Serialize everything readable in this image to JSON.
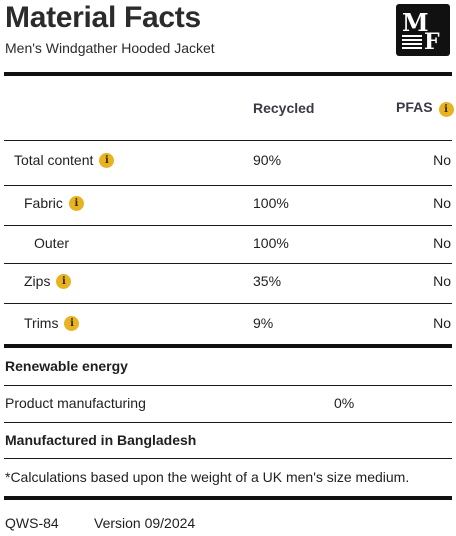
{
  "header": {
    "title": "Material Facts",
    "subtitle": "Men's Windgather Hooded Jacket",
    "logo_text": "MF"
  },
  "columns": {
    "recycled": "Recycled",
    "pfas": "PFAS"
  },
  "rows": [
    {
      "label": "Total content",
      "recycled": "90%",
      "pfas": "No",
      "info": true
    },
    {
      "label": "Fabric",
      "recycled": "100%",
      "pfas": "No",
      "info": true
    },
    {
      "label": "Outer",
      "recycled": "100%",
      "pfas": "No",
      "info": false
    },
    {
      "label": "Zips",
      "recycled": "35%",
      "pfas": "No",
      "info": true
    },
    {
      "label": "Trims",
      "recycled": "9%",
      "pfas": "No",
      "info": true
    }
  ],
  "renewable": {
    "heading": "Renewable energy",
    "item_label": "Product manufacturing",
    "item_value": "0%"
  },
  "origin": "Manufactured in Bangladesh",
  "note": "*Calculations based upon the weight of a UK men's size medium.",
  "footer": {
    "code": "QWS-84",
    "version": "Version 09/2024"
  },
  "colors": {
    "info_badge": "#e8b321",
    "rules": "#111111",
    "logo_bg": "#111111"
  },
  "icons": {
    "info": "info-icon",
    "logo": "mf-logo-icon"
  }
}
